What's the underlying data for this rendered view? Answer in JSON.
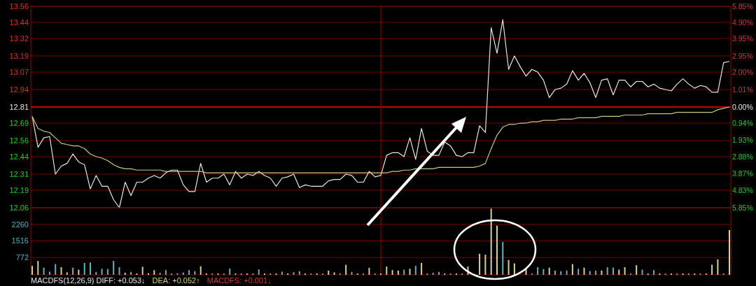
{
  "chart_data": [
    {
      "type": "line",
      "categories": [
        null,
        null,
        null,
        null,
        null,
        null,
        null,
        null,
        null,
        null,
        null,
        null,
        null,
        null,
        null,
        null,
        null,
        null,
        null,
        null,
        null,
        null,
        null,
        null,
        null,
        null,
        null,
        null,
        null,
        null,
        null,
        null,
        null,
        null,
        null,
        null,
        null,
        null,
        null,
        null,
        null,
        null,
        null,
        null,
        null,
        null,
        null,
        null,
        null,
        null,
        null,
        null,
        null,
        null,
        null,
        null,
        null,
        null,
        null,
        null,
        null,
        null,
        null,
        null,
        null,
        null,
        null,
        null,
        null,
        null,
        null,
        null,
        null,
        null,
        null,
        null,
        null,
        null,
        null,
        null,
        null,
        null,
        null,
        null,
        null,
        null,
        null,
        null,
        null,
        null,
        null,
        null,
        null,
        null,
        null,
        null,
        null,
        null,
        null,
        null,
        null,
        null,
        null,
        null,
        null,
        null,
        null,
        null,
        null,
        null,
        null,
        null,
        null,
        null,
        null,
        null,
        null,
        null,
        null,
        null,
        null
      ],
      "ylim": [
        12.06,
        13.56
      ],
      "yticks": [
        13.56,
        13.44,
        13.32,
        13.19,
        13.07,
        12.94,
        12.81,
        12.69,
        12.56,
        12.44,
        12.31,
        12.19,
        12.06
      ],
      "y2lim": [
        -5.85,
        5.85
      ],
      "y2ticks": [
        {
          "value": 5.85,
          "label": "5.85%"
        },
        {
          "value": 4.9,
          "label": "4.90%"
        },
        {
          "value": 3.95,
          "label": "3.95%"
        },
        {
          "value": 2.95,
          "label": "2.95%"
        },
        {
          "value": 2.0,
          "label": "2.00%"
        },
        {
          "value": 1.01,
          "label": "1.01%"
        },
        {
          "value": 0,
          "label": "0.00%"
        },
        {
          "value": -0.94,
          "label": "0.94%"
        },
        {
          "value": -1.93,
          "label": "1.93%"
        },
        {
          "value": -2.88,
          "label": "2.88%"
        },
        {
          "value": -3.87,
          "label": "3.87%"
        },
        {
          "value": -4.83,
          "label": "4.83%"
        },
        {
          "value": -5.85,
          "label": "5.85%"
        }
      ],
      "grid": "y",
      "ref_lines": [
        {
          "axis": "y",
          "value": 12.81,
          "color": "#c00000"
        }
      ],
      "series": [
        {
          "color": "#e6e6e6",
          "values": [
            12.74,
            12.51,
            12.58,
            12.59,
            12.31,
            12.37,
            12.39,
            12.46,
            12.4,
            12.38,
            12.2,
            12.3,
            12.22,
            12.22,
            12.12,
            12.06,
            12.25,
            12.15,
            12.25,
            12.25,
            12.28,
            12.3,
            12.28,
            12.32,
            12.34,
            12.34,
            12.23,
            12.18,
            12.18,
            12.39,
            12.25,
            12.28,
            12.28,
            12.31,
            12.23,
            12.33,
            12.28,
            12.31,
            12.3,
            12.33,
            12.3,
            12.28,
            12.22,
            12.28,
            12.29,
            12.31,
            12.21,
            12.23,
            12.22,
            12.22,
            12.22,
            12.26,
            12.27,
            12.27,
            12.31,
            12.3,
            12.25,
            12.25,
            12.33,
            12.29,
            12.3,
            12.45,
            12.47,
            12.47,
            12.44,
            12.58,
            12.42,
            12.65,
            12.48,
            12.45,
            12.45,
            12.55,
            12.52,
            12.45,
            12.44,
            12.47,
            12.47,
            12.67,
            12.62,
            13.4,
            13.21,
            13.46,
            13.09,
            13.19,
            13.11,
            13.04,
            13.09,
            13.07,
            13.01,
            12.88,
            12.94,
            12.95,
            12.98,
            13.08,
            13.01,
            13.06,
            12.99,
            12.88,
            13.01,
            13.02,
            12.9,
            13.01,
            13.01,
            12.96,
            13.0,
            13.0,
            12.96,
            12.98,
            12.95,
            12.94,
            12.93,
            12.98,
            13.02,
            12.98,
            12.95,
            12.97,
            12.96,
            12.92,
            12.92,
            13.14,
            13.15
          ]
        },
        {
          "color": "#c8c878",
          "values": [
            12.74,
            12.65,
            12.63,
            12.62,
            12.58,
            12.54,
            12.53,
            12.52,
            12.52,
            12.5,
            12.46,
            12.44,
            12.43,
            12.41,
            12.38,
            12.36,
            12.35,
            12.35,
            12.34,
            12.34,
            12.34,
            12.34,
            12.34,
            12.33,
            12.33,
            12.33,
            12.33,
            12.33,
            12.33,
            12.33,
            12.32,
            12.32,
            12.32,
            12.32,
            12.32,
            12.32,
            12.32,
            12.32,
            12.32,
            12.32,
            12.32,
            12.32,
            12.32,
            12.32,
            12.32,
            12.32,
            12.32,
            12.32,
            12.32,
            12.32,
            12.32,
            12.32,
            12.32,
            12.32,
            12.32,
            12.32,
            12.32,
            12.32,
            12.32,
            12.32,
            12.32,
            12.32,
            12.33,
            12.33,
            12.34,
            12.34,
            12.35,
            12.35,
            12.35,
            12.35,
            12.36,
            12.36,
            12.36,
            12.36,
            12.36,
            12.36,
            12.36,
            12.37,
            12.39,
            12.5,
            12.6,
            12.66,
            12.68,
            12.68,
            12.69,
            12.69,
            12.7,
            12.7,
            12.71,
            12.71,
            12.71,
            12.72,
            12.72,
            12.72,
            12.73,
            12.73,
            12.73,
            12.73,
            12.74,
            12.74,
            12.74,
            12.74,
            12.75,
            12.75,
            12.75,
            12.75,
            12.76,
            12.76,
            12.76,
            12.76,
            12.76,
            12.77,
            12.77,
            12.77,
            12.77,
            12.77,
            12.77,
            12.77,
            12.79,
            12.8,
            12.81
          ]
        }
      ]
    },
    {
      "type": "bar",
      "categories": [
        null,
        null,
        null,
        null,
        null,
        null,
        null,
        null,
        null,
        null,
        null,
        null,
        null,
        null,
        null,
        null,
        null,
        null,
        null,
        null,
        null,
        null,
        null,
        null,
        null,
        null,
        null,
        null,
        null,
        null,
        null,
        null,
        null,
        null,
        null,
        null,
        null,
        null,
        null,
        null,
        null,
        null,
        null,
        null,
        null,
        null,
        null,
        null,
        null,
        null,
        null,
        null,
        null,
        null,
        null,
        null,
        null,
        null,
        null,
        null,
        null,
        null,
        null,
        null,
        null,
        null,
        null,
        null,
        null,
        null,
        null,
        null,
        null,
        null,
        null,
        null,
        null,
        null,
        null,
        null,
        null,
        null,
        null,
        null,
        null,
        null,
        null,
        null,
        null,
        null,
        null,
        null,
        null,
        null,
        null,
        null,
        null,
        null,
        null,
        null,
        null,
        null,
        null,
        null,
        null,
        null,
        null,
        null,
        null,
        null,
        null,
        null,
        null,
        null,
        null,
        null,
        null,
        null,
        null,
        null,
        null
      ],
      "ylim": [
        0,
        3000
      ],
      "yticks": [
        772,
        1516,
        2260
      ],
      "grid": "y",
      "annotations": [
        "MACDFS(12,26,9) DIFF: +0.053↓",
        "DEA: +0.052↑",
        "MACDFS: +0.001↓"
      ],
      "values": [
        400,
        620,
        320,
        140,
        480,
        340,
        110,
        320,
        230,
        530,
        550,
        130,
        270,
        260,
        620,
        340,
        90,
        130,
        60,
        360,
        70,
        210,
        90,
        210,
        60,
        70,
        100,
        210,
        160,
        380,
        60,
        60,
        60,
        60,
        280,
        60,
        60,
        60,
        60,
        240,
        60,
        60,
        60,
        140,
        60,
        120,
        160,
        60,
        60,
        60,
        60,
        190,
        110,
        60,
        450,
        130,
        60,
        60,
        310,
        60,
        60,
        370,
        210,
        190,
        230,
        270,
        400,
        530,
        60,
        90,
        130,
        60,
        60,
        60,
        60,
        370,
        null,
        940,
        900,
        2960,
        2200,
        1470,
        660,
        510,
        null,
        270,
        60,
        340,
        260,
        320,
        190,
        160,
        190,
        480,
        270,
        320,
        170,
        180,
        190,
        340,
        320,
        230,
        340,
        60,
        430,
        230,
        60,
        210,
        60,
        60,
        60,
        60,
        60,
        60,
        60,
        60,
        60,
        450,
        690,
        60,
        2000
      ],
      "colors": [
        "#d2d296",
        "#d2d296",
        "#5fb4c0",
        "#5fb4c0",
        "#5fb4c0",
        "#d2d296",
        "#d2d296",
        "#5fb4c0",
        "#d2d296",
        "#5fb4c0",
        "#5fb4c0",
        "#5fb4c0",
        "#5fb4c0",
        "#5fb4c0",
        "#5fb4c0",
        "#5fb4c0",
        "#d2d296",
        "#5fb4c0",
        "#d2d296",
        "#d2d296",
        "#d2d296",
        "#d2d296",
        "#5fb4c0",
        "#5fb4c0",
        "#5fb4c0",
        "#5fb4c0",
        "#5fb4c0",
        "#5fb4c0",
        "#5fb4c0",
        "#d2d296",
        "#d2d296",
        "#5fb4c0",
        "#d2d296",
        "#5fb4c0",
        "#5fb4c0",
        "#d2d296",
        "#5fb4c0",
        "#d2d296",
        "#5fb4c0",
        "#5fb4c0",
        "#d2d296",
        "#5fb4c0",
        "#d2d296",
        "#5fb4c0",
        "#d2d296",
        "#5fb4c0",
        "#5fb4c0",
        "#d2d296",
        "#5fb4c0",
        "#d2d296",
        "#5fb4c0",
        "#d2d296",
        "#d2d296",
        "#5fb4c0",
        "#d2d296",
        "#5fb4c0",
        "#d2d296",
        "#5fb4c0",
        "#d2d296",
        "#5fb4c0",
        "#d2d296",
        "#d2d296",
        "#d2d296",
        "#d2d296",
        "#5fb4c0",
        "#d2d296",
        "#5fb4c0",
        "#d2d296",
        "#5fb4c0",
        "#5fb4c0",
        "#5fb4c0",
        "#d2d296",
        "#5fb4c0",
        "#d2d296",
        "#5fb4c0",
        "#d2d296",
        null,
        "#d2d296",
        "#d2d296",
        "#d2d296",
        "#d2d296",
        "#5fb4c0",
        "#d2d296",
        "#d2d296",
        null,
        "#d2d296",
        "#5fb4c0",
        "#5fb4c0",
        "#5fb4c0",
        "#d2d296",
        "#5fb4c0",
        "#5fb4c0",
        "#5fb4c0",
        "#d2d296",
        "#5fb4c0",
        "#d2d296",
        "#5fb4c0",
        "#5fb4c0",
        "#d2d296",
        "#5fb4c0",
        "#5fb4c0",
        "#d2d296",
        "#d2d296",
        "#5fb4c0",
        "#d2d296",
        "#5fb4c0",
        "#d2d296",
        "#5fb4c0",
        "#d2d296",
        "#5fb4c0",
        "#d2d296",
        "#5fb4c0",
        "#d2d296",
        "#5fb4c0",
        "#d2d296",
        "#5fb4c0",
        "#d2d296",
        "#d2d296",
        "#d2d296",
        "#5fb4c0",
        "#d2d296"
      ]
    }
  ]
}
